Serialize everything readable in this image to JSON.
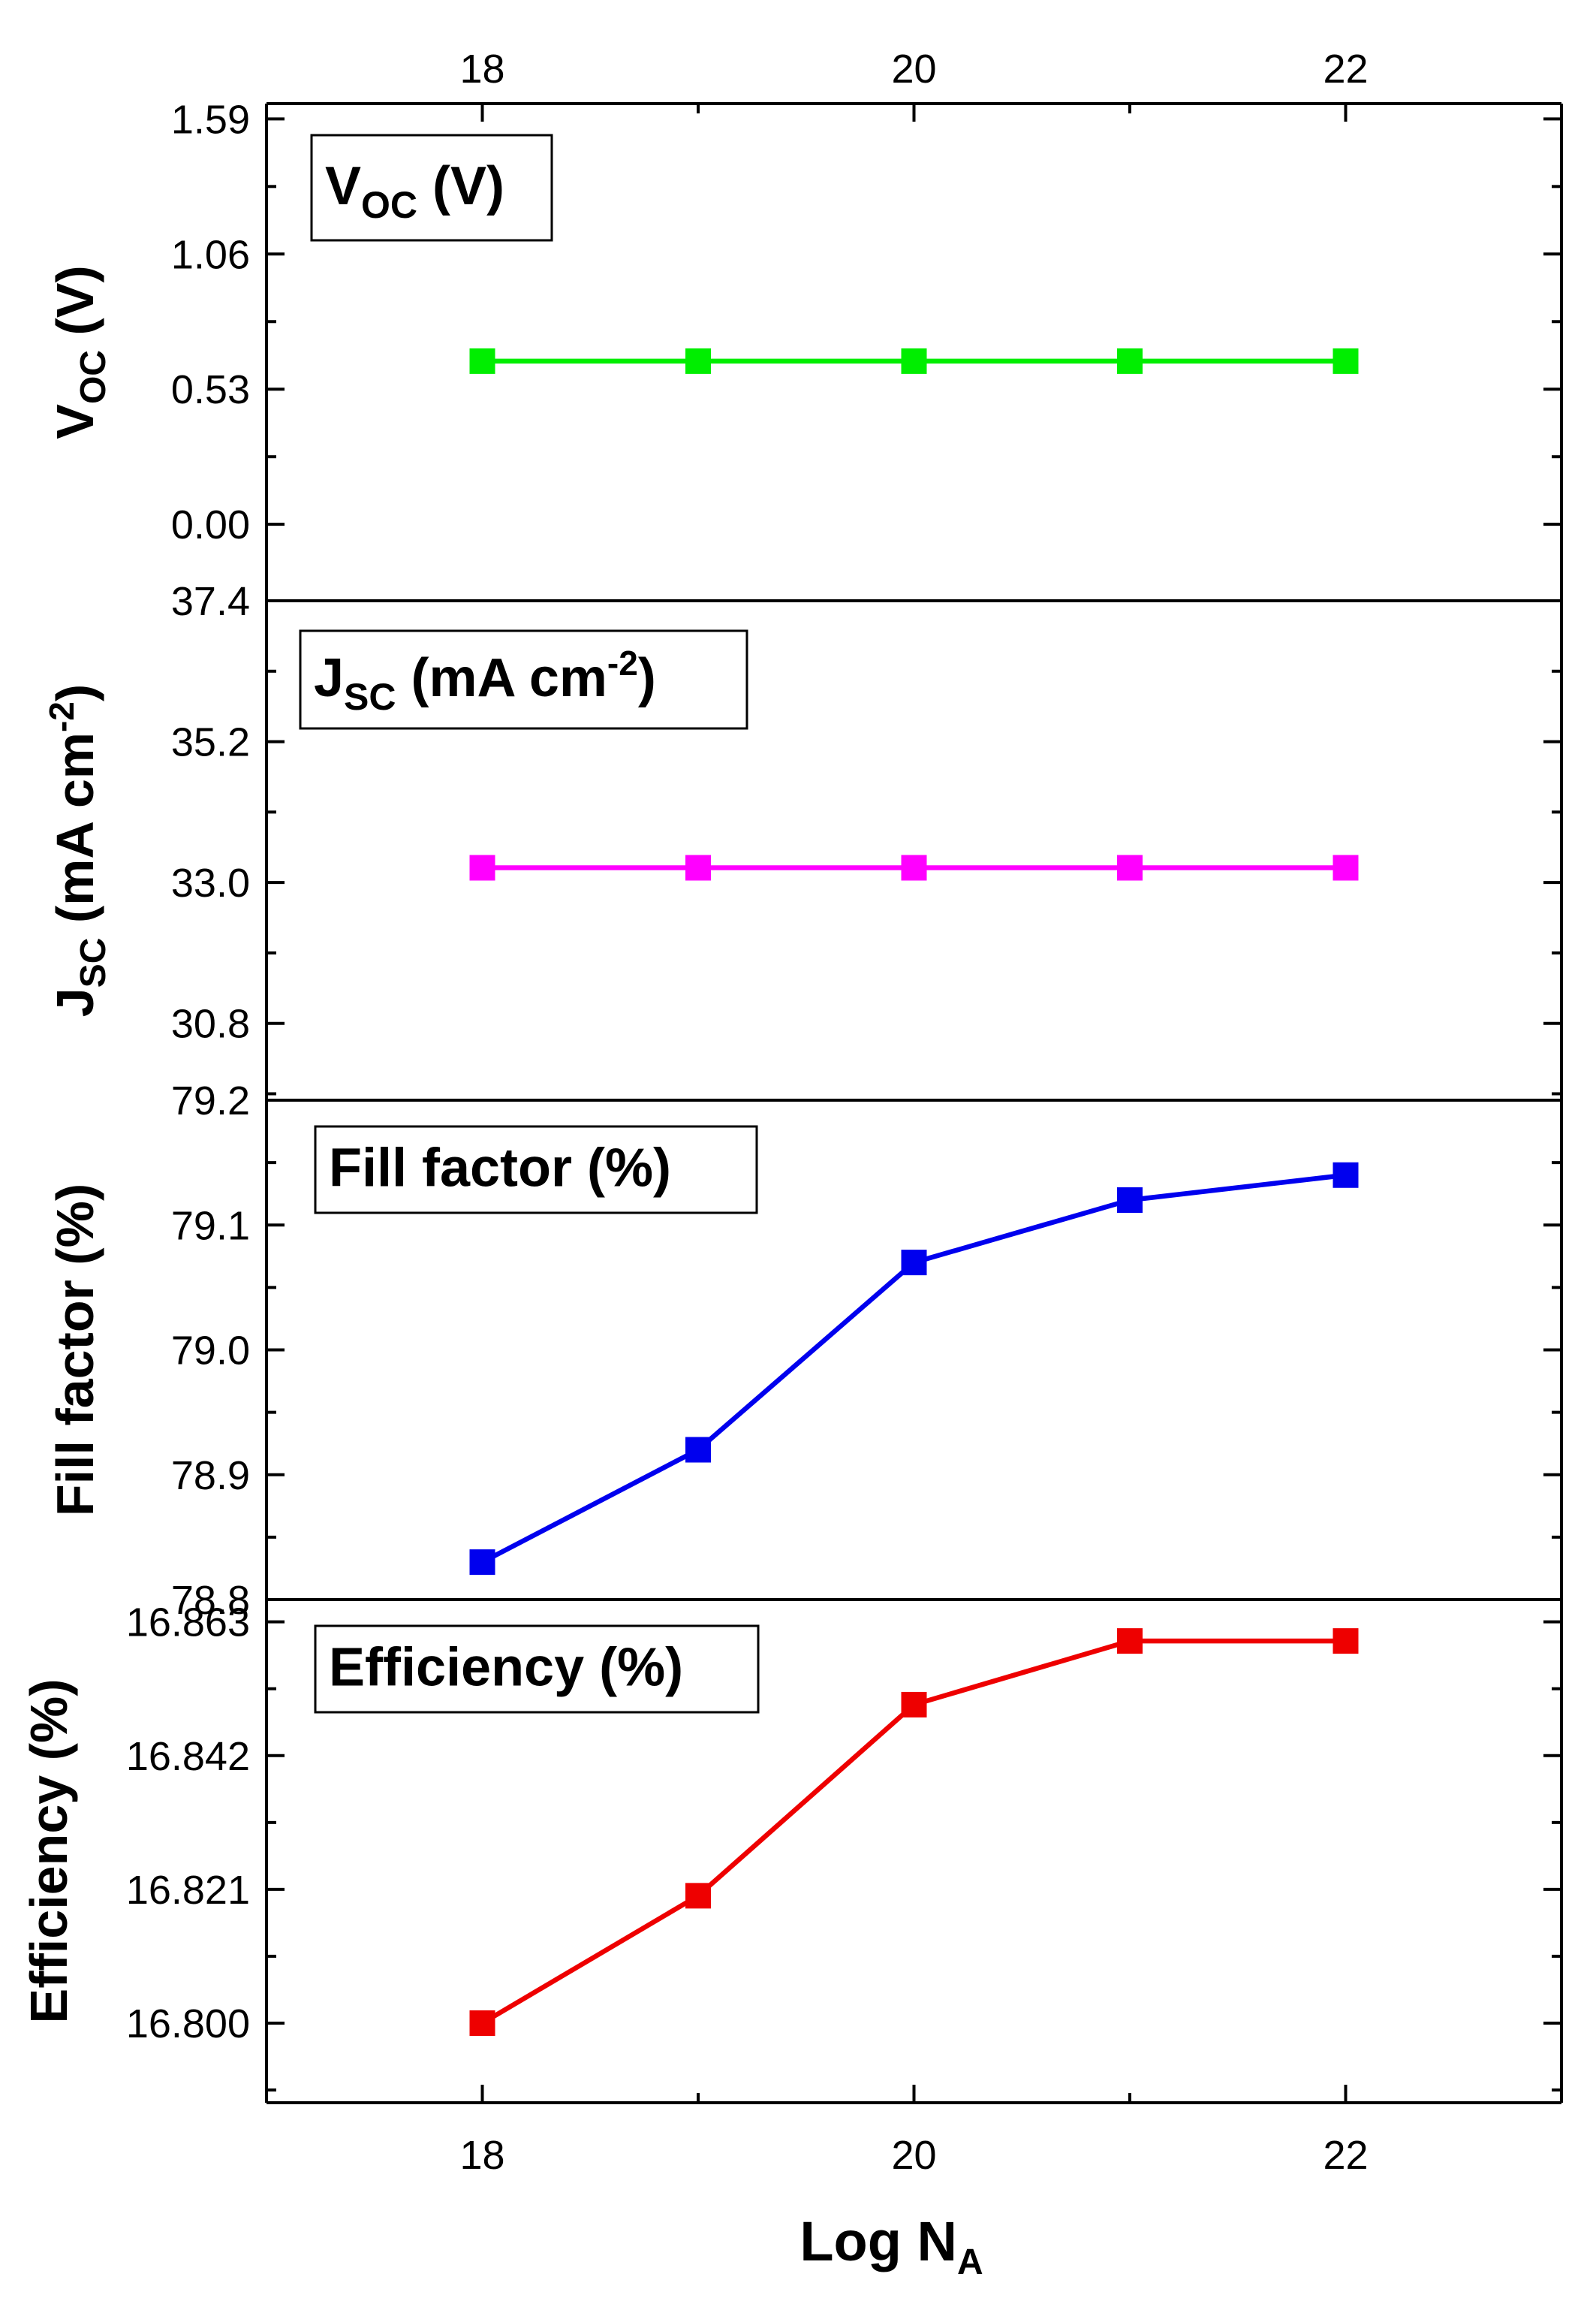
{
  "chart_data": {
    "type": "line",
    "layout": "stacked-panels",
    "shared_x": {
      "label": "Log N",
      "label_subscript": "A",
      "ticks": [
        18,
        20,
        22
      ],
      "tick_labels": [
        "18",
        "20",
        "22"
      ],
      "xlim": [
        17,
        23
      ]
    },
    "x": [
      18,
      19,
      20,
      21,
      22
    ],
    "panels": [
      {
        "id": "voc",
        "label_main": "V",
        "label_sub": "OC",
        "label_tail": " (V)",
        "ylabel_main": "V",
        "ylabel_sub": "OC",
        "ylabel_tail": " (V)",
        "ylim": [
          -0.3,
          1.65
        ],
        "ticks": [
          0.0,
          0.53,
          1.06,
          1.59
        ],
        "tick_labels": [
          "0.00",
          "0.53",
          "1.06",
          "1.59"
        ],
        "minor_ticks": [
          0.265,
          0.795,
          1.325
        ],
        "color": "#00ee00",
        "series": [
          {
            "name": "Voc",
            "values": [
              0.64,
              0.64,
              0.64,
              0.64,
              0.64
            ]
          }
        ]
      },
      {
        "id": "jsc",
        "label_main": "J",
        "label_sub": "SC",
        "label_tail": " (mA cm",
        "label_sup": "-2",
        "label_end": ")",
        "ylabel_main": "J",
        "ylabel_sub": "SC",
        "ylabel_tail": " (mA cm",
        "ylabel_sup": "-2",
        "ylabel_end": ")",
        "ylim": [
          29.6,
          37.4
        ],
        "ticks": [
          30.8,
          33.0,
          35.2,
          37.4
        ],
        "tick_labels": [
          "30.8",
          "33.0",
          "35.2",
          "37.4"
        ],
        "minor_ticks": [
          29.7,
          31.9,
          34.1,
          36.3
        ],
        "color": "#ff00ff",
        "series": [
          {
            "name": "Jsc",
            "values": [
              33.23,
              33.23,
              33.23,
              33.23,
              33.23
            ]
          }
        ]
      },
      {
        "id": "ff",
        "label_main": "Fill factor (%)",
        "ylabel_main": "Fill factor (%)",
        "ylim": [
          78.8,
          79.2
        ],
        "ticks": [
          78.8,
          78.9,
          79.0,
          79.1,
          79.2
        ],
        "tick_labels": [
          "78.8",
          "78.9",
          "79.0",
          "79.1",
          "79.2"
        ],
        "minor_ticks": [
          78.85,
          78.95,
          79.05,
          79.15
        ],
        "color": "#0000ee",
        "series": [
          {
            "name": "Fill factor",
            "values": [
              78.83,
              78.92,
              79.07,
              79.12,
              79.14
            ]
          }
        ]
      },
      {
        "id": "eff",
        "label_main": "Efficiency (%)",
        "ylabel_main": "Efficiency (%)",
        "ylim": [
          16.7875,
          16.8665
        ],
        "ticks": [
          16.8,
          16.821,
          16.842,
          16.863
        ],
        "tick_labels": [
          "16.800",
          "16.821",
          "16.842",
          "16.863"
        ],
        "minor_ticks": [
          16.7895,
          16.8105,
          16.8315,
          16.8525
        ],
        "color": "#ee0000",
        "series": [
          {
            "name": "Efficiency",
            "values": [
              16.8,
              16.82,
              16.85,
              16.86,
              16.86
            ]
          }
        ]
      }
    ]
  }
}
